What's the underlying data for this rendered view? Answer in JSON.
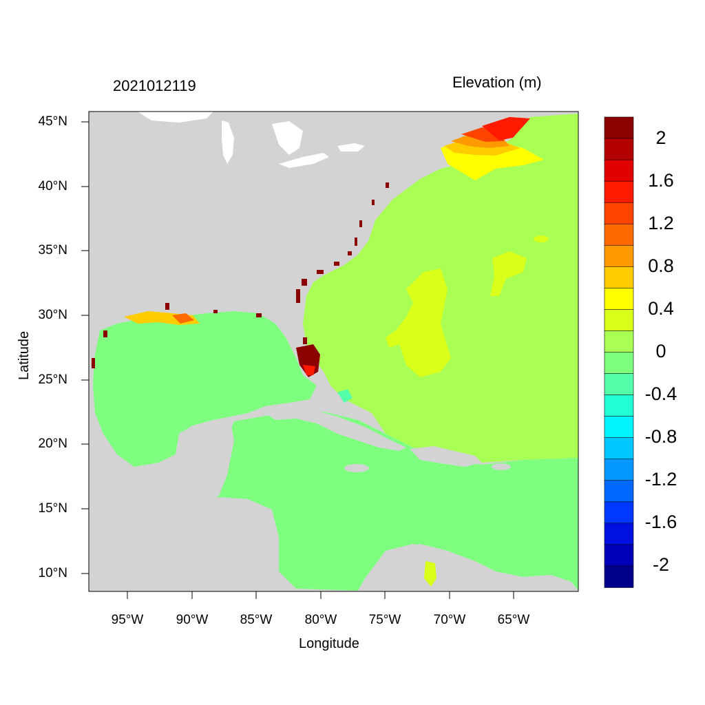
{
  "header": {
    "left_title": "2021012119",
    "right_title": "Elevation (m)"
  },
  "axes": {
    "x_title": "Longitude",
    "y_title": "Latitude",
    "x_ticks": [
      "95°W",
      "90°W",
      "85°W",
      "80°W",
      "75°W",
      "70°W",
      "65°W"
    ],
    "y_ticks": [
      "45°N",
      "40°N",
      "35°N",
      "30°N",
      "25°N",
      "20°N",
      "15°N",
      "10°N"
    ]
  },
  "colorbar": {
    "labels": [
      "2",
      "1.6",
      "1.2",
      "0.8",
      "0.4",
      "0",
      "-0.4",
      "-0.8",
      "-1.2",
      "-1.6",
      "-2"
    ],
    "colors": [
      "#8b0000",
      "#b30000",
      "#e00000",
      "#ff1a00",
      "#ff4400",
      "#ff6a00",
      "#ff9900",
      "#ffcc00",
      "#ffff00",
      "#d9ff1a",
      "#aaff55",
      "#7fff80",
      "#55ffaa",
      "#22ffd5",
      "#00f5ff",
      "#00c8ff",
      "#0098ff",
      "#0068ff",
      "#0038ff",
      "#0010e0",
      "#0000b8",
      "#00008b"
    ]
  },
  "map": {
    "land_color": "#d3d3d3",
    "ocean_gulf_caribbean": "#7fff80",
    "ocean_atlantic": "#aaff55",
    "surge_high": "#8b0000"
  }
}
